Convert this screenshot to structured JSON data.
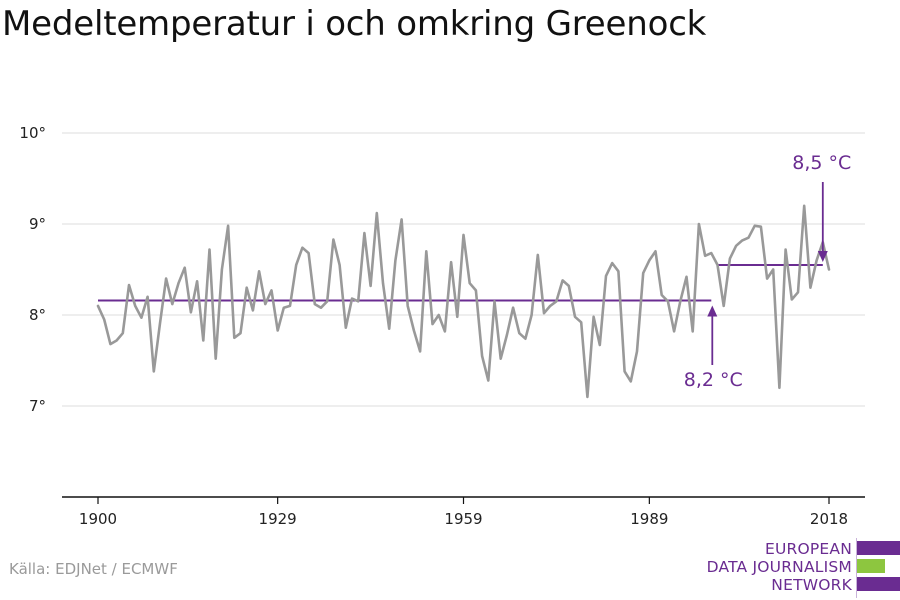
{
  "title": "Medeltemperatur i och omkring Greenock",
  "source": "Källa: EDJNet / ECMWF",
  "logo": {
    "lines": [
      "EUROPEAN",
      "DATA JOURNALISM",
      "NETWORK"
    ],
    "colors": [
      "#6a2c91",
      "#8dc63f",
      "#6a2c91"
    ]
  },
  "colors": {
    "series": "#999999",
    "mean": "#6a2c91",
    "grid": "#dddddd",
    "axis": "#111111"
  },
  "chart_data": {
    "type": "line",
    "title": "Medeltemperatur i och omkring Greenock",
    "xlabel": "",
    "ylabel": "",
    "xlim": [
      1900,
      2018
    ],
    "ylim": [
      6.0,
      10.0
    ],
    "xticks": [
      1900,
      1929,
      1959,
      1989,
      2018
    ],
    "xtick_labels": [
      "1900",
      "1929",
      "1959",
      "1989",
      "2018"
    ],
    "yticks": [
      7,
      8,
      9,
      10
    ],
    "ytick_labels": [
      "7°",
      "8°",
      "9°",
      "10°"
    ],
    "grid": true,
    "series": [
      {
        "x": [
          1900,
          1901,
          1902,
          1903,
          1904,
          1905,
          1906,
          1907,
          1908,
          1909,
          1910,
          1911,
          1912,
          1913,
          1914,
          1915,
          1916,
          1917,
          1918,
          1919,
          1920,
          1921,
          1922,
          1923,
          1924,
          1925,
          1926,
          1927,
          1928,
          1929,
          1930,
          1931,
          1932,
          1933,
          1934,
          1935,
          1936,
          1937,
          1938,
          1939,
          1940,
          1941,
          1942,
          1943,
          1944,
          1945,
          1946,
          1947,
          1948,
          1949,
          1950,
          1951,
          1952,
          1953,
          1954,
          1955,
          1956,
          1957,
          1958,
          1959,
          1960,
          1961,
          1962,
          1963,
          1964,
          1965,
          1966,
          1967,
          1968,
          1969,
          1970,
          1971,
          1972,
          1973,
          1974,
          1975,
          1976,
          1977,
          1978,
          1979,
          1980,
          1981,
          1982,
          1983,
          1984,
          1985,
          1986,
          1987,
          1988,
          1989,
          1990,
          1991,
          1992,
          1993,
          1994,
          1995,
          1996,
          1997,
          1998,
          1999,
          2000,
          2001,
          2002,
          2003,
          2004,
          2005,
          2006,
          2007,
          2008,
          2009,
          2010,
          2011,
          2012,
          2013,
          2014,
          2015,
          2016,
          2017,
          2018
        ],
        "y": [
          8.1,
          7.95,
          7.68,
          7.72,
          7.8,
          8.33,
          8.1,
          7.97,
          8.2,
          7.38,
          7.9,
          8.4,
          8.12,
          8.35,
          8.52,
          8.03,
          8.37,
          7.72,
          8.72,
          7.52,
          8.5,
          8.98,
          7.75,
          7.8,
          8.3,
          8.05,
          8.48,
          8.12,
          8.27,
          7.83,
          8.08,
          8.1,
          8.55,
          8.74,
          8.68,
          8.12,
          8.08,
          8.15,
          8.83,
          8.55,
          7.86,
          8.18,
          8.15,
          8.9,
          8.32,
          9.12,
          8.35,
          7.85,
          8.6,
          9.05,
          8.1,
          7.83,
          7.6,
          8.7,
          7.9,
          8.0,
          7.82,
          8.58,
          7.98,
          8.88,
          8.35,
          8.27,
          7.55,
          7.28,
          8.15,
          7.52,
          7.78,
          8.08,
          7.8,
          7.74,
          8.0,
          8.66,
          8.02,
          8.1,
          8.15,
          8.38,
          8.32,
          7.98,
          7.92,
          7.1,
          7.98,
          7.67,
          8.43,
          8.57,
          8.48,
          7.38,
          7.27,
          7.6,
          8.46,
          8.6,
          8.7,
          8.22,
          8.15,
          7.82,
          8.15,
          8.42,
          7.82,
          9.0,
          8.65,
          8.68,
          8.55,
          8.1,
          8.62,
          8.76,
          8.82,
          8.85,
          8.98,
          8.97,
          8.4,
          8.5,
          7.2,
          8.72,
          8.17,
          8.25,
          9.2,
          8.3,
          8.6,
          8.8,
          8.5
        ]
      }
    ],
    "reference_lines": [
      {
        "label": "8,2 °C",
        "value": 8.16,
        "x_start": 1900,
        "x_end": 1999
      },
      {
        "label": "8,5 °C",
        "value": 8.55,
        "x_start": 2000,
        "x_end": 2017
      }
    ]
  }
}
